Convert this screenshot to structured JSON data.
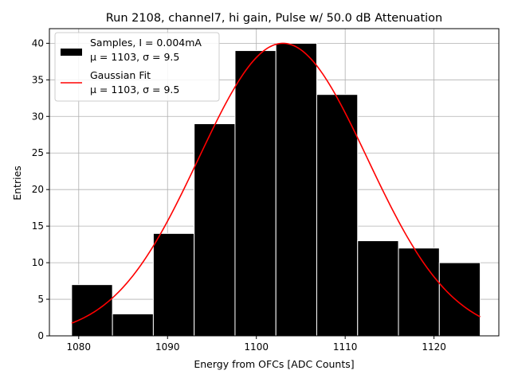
{
  "chart_data": {
    "type": "bar",
    "title": "Run 2108, channel7, hi gain, Pulse w/ 50.0 dB Attenuation",
    "xlabel": "Energy from OFCs [ADC Counts]",
    "ylabel": "Entries",
    "xlim": [
      1076.7,
      1127.3
    ],
    "ylim": [
      0,
      42
    ],
    "xticks": [
      1080,
      1090,
      1100,
      1110,
      1120
    ],
    "yticks": [
      0,
      5,
      10,
      15,
      20,
      25,
      30,
      35,
      40
    ],
    "grid": true,
    "legend_position": "top-left",
    "bin_edges": [
      1079.2,
      1083.8,
      1088.4,
      1093.0,
      1097.6,
      1102.2,
      1106.8,
      1111.4,
      1116.0,
      1120.6,
      1125.2
    ],
    "values": [
      7,
      3,
      14,
      29,
      39,
      40,
      33,
      13,
      12,
      10
    ],
    "bar_color": "#000000",
    "bar_edge_color": "#ffffff",
    "fit": {
      "mu": 1103,
      "sigma": 9.5,
      "amplitude": 40,
      "x_range": [
        1079.2,
        1125.2
      ],
      "color": "#ff0000"
    },
    "legend": [
      {
        "line1": "Samples, I = 0.004mA",
        "line2": "μ = 1103, σ = 9.5",
        "color": "#000000",
        "kind": "patch"
      },
      {
        "line1": "Gaussian Fit",
        "line2": "μ = 1103, σ = 9.5",
        "color": "#ff0000",
        "kind": "line"
      }
    ]
  }
}
